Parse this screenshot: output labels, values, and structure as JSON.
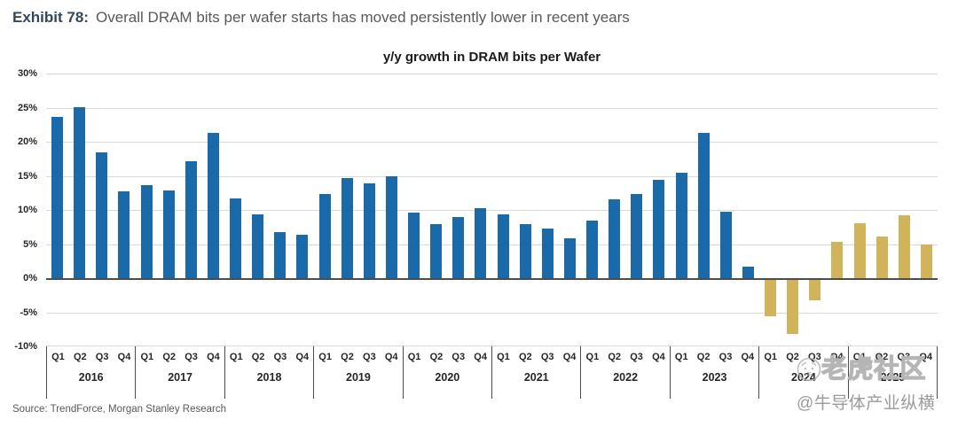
{
  "header": {
    "exhibit_label": "Exhibit 78:",
    "title": "Overall DRAM bits per wafer starts has moved persistently lower in recent years"
  },
  "chart_data": {
    "type": "bar",
    "title": "y/y growth in DRAM bits per Wafer",
    "xlabel": "",
    "ylabel": "",
    "ylim": [
      -10,
      30
    ],
    "ytick_step": 5,
    "ytick_labels": [
      "30%",
      "25%",
      "20%",
      "15%",
      "10%",
      "5%",
      "0%",
      "-5%",
      "-10%"
    ],
    "grid": true,
    "legend": "none",
    "groups": [
      {
        "year": "2016",
        "quarters": [
          "Q1",
          "Q2",
          "Q3",
          "Q4"
        ],
        "values": [
          23.6,
          25.1,
          18.5,
          12.7
        ],
        "series": "actual"
      },
      {
        "year": "2017",
        "quarters": [
          "Q1",
          "Q2",
          "Q3",
          "Q4"
        ],
        "values": [
          13.7,
          12.9,
          17.1,
          21.3
        ],
        "series": "actual"
      },
      {
        "year": "2018",
        "quarters": [
          "Q1",
          "Q2",
          "Q3",
          "Q4"
        ],
        "values": [
          11.7,
          9.3,
          6.8,
          6.3
        ],
        "series": "actual"
      },
      {
        "year": "2019",
        "quarters": [
          "Q1",
          "Q2",
          "Q3",
          "Q4"
        ],
        "values": [
          12.4,
          14.7,
          13.9,
          14.9
        ],
        "series": "actual"
      },
      {
        "year": "2020",
        "quarters": [
          "Q1",
          "Q2",
          "Q3",
          "Q4"
        ],
        "values": [
          9.6,
          7.9,
          9.0,
          10.3
        ],
        "series": "actual"
      },
      {
        "year": "2021",
        "quarters": [
          "Q1",
          "Q2",
          "Q3",
          "Q4"
        ],
        "values": [
          9.4,
          7.9,
          7.3,
          5.8
        ],
        "series": "actual"
      },
      {
        "year": "2022",
        "quarters": [
          "Q1",
          "Q2",
          "Q3",
          "Q4"
        ],
        "values": [
          8.4,
          11.6,
          12.3,
          14.4
        ],
        "series": "actual"
      },
      {
        "year": "2023",
        "quarters": [
          "Q1",
          "Q2",
          "Q3",
          "Q4"
        ],
        "values": [
          15.4,
          21.3,
          9.7,
          1.7
        ],
        "series": "actual"
      },
      {
        "year": "2024",
        "quarters": [
          "Q1",
          "Q2",
          "Q3",
          "Q4"
        ],
        "values": [
          -5.3,
          -7.9,
          -3.0,
          5.3
        ],
        "series": "forecast"
      },
      {
        "year": "2025",
        "quarters": [
          "Q1",
          "Q2",
          "Q3",
          "Q4"
        ],
        "values": [
          8.1,
          6.1,
          9.2,
          5.0
        ],
        "series": "forecast"
      }
    ],
    "colors": {
      "actual": "#1a69a9",
      "forecast": "#d1b35c",
      "gridline": "#d9d9d9",
      "zero_line": "#4d4d4d"
    }
  },
  "source": "Source: TrendForce, Morgan Stanley Research",
  "watermark": {
    "icon": "tiger-logo-icon",
    "line1": "老虎社区",
    "line2": "@牛导体产业纵横"
  }
}
